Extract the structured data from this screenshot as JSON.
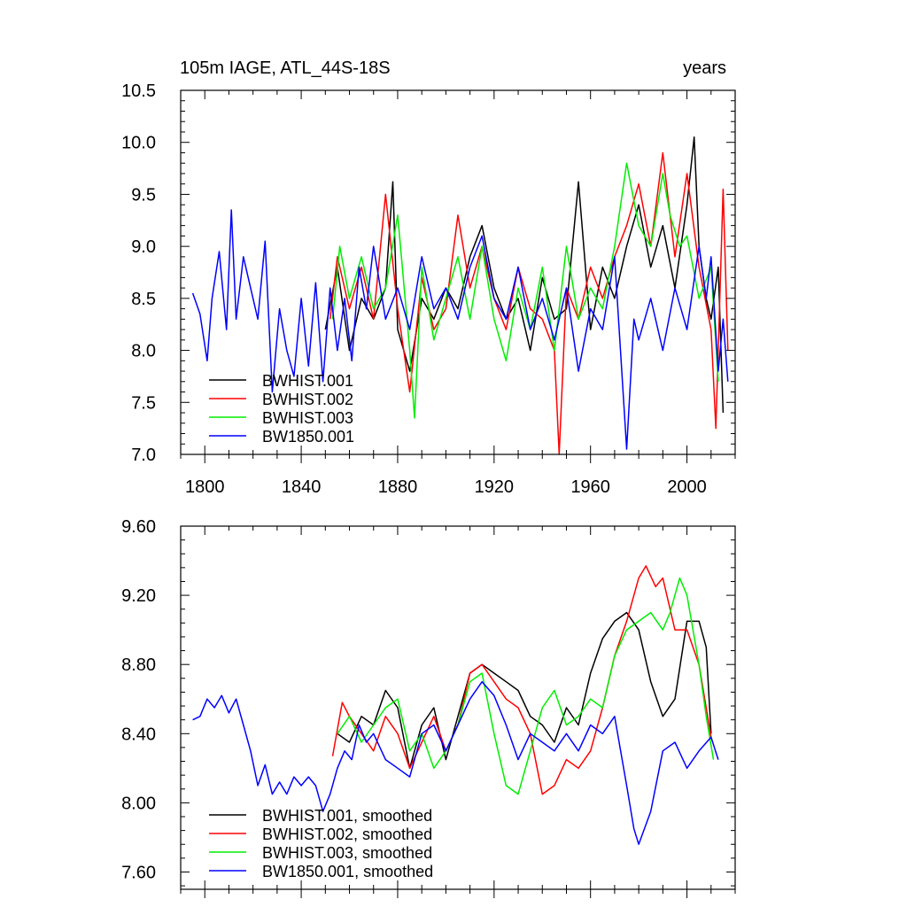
{
  "chart_data": [
    {
      "type": "line",
      "title": "105m IAGE, ATL_44S-18S",
      "units_label": "years",
      "xlim": [
        1790,
        2020
      ],
      "ylim": [
        7.0,
        10.5
      ],
      "x_ticks": [
        1800,
        1840,
        1880,
        1920,
        1960,
        2000
      ],
      "x_tick_labels": [
        "1800",
        "1840",
        "1880",
        "1920",
        "1960",
        "2000"
      ],
      "y_ticks": [
        7.0,
        7.5,
        8.0,
        8.5,
        9.0,
        9.5,
        10.0,
        10.5
      ],
      "y_tick_labels": [
        "7.0",
        "7.5",
        "8.0",
        "8.5",
        "9.0",
        "9.5",
        "10.0",
        "10.5"
      ],
      "legend_position": "bottom-left",
      "series": [
        {
          "name": "BWHIST.001",
          "color": "#000000",
          "x": [
            1850,
            1855,
            1860,
            1865,
            1870,
            1875,
            1878,
            1880,
            1885,
            1890,
            1895,
            1900,
            1905,
            1910,
            1915,
            1920,
            1925,
            1930,
            1935,
            1940,
            1945,
            1950,
            1955,
            1960,
            1965,
            1970,
            1975,
            1980,
            1985,
            1990,
            1995,
            2000,
            2003,
            2005,
            2008,
            2010,
            2013,
            2015
          ],
          "values": [
            8.2,
            8.8,
            8.0,
            8.5,
            8.3,
            8.6,
            9.62,
            8.2,
            7.8,
            8.5,
            8.3,
            8.6,
            8.4,
            8.9,
            9.2,
            8.6,
            8.3,
            8.5,
            8.0,
            8.7,
            8.3,
            8.4,
            9.62,
            8.2,
            8.8,
            8.5,
            9.0,
            9.4,
            8.8,
            9.2,
            8.6,
            9.4,
            10.05,
            9.0,
            8.5,
            8.3,
            8.8,
            7.4
          ]
        },
        {
          "name": "BWHIST.002",
          "color": "#ff0000",
          "x": [
            1852,
            1855,
            1860,
            1865,
            1870,
            1875,
            1880,
            1885,
            1890,
            1895,
            1900,
            1905,
            1910,
            1915,
            1920,
            1925,
            1930,
            1935,
            1940,
            1945,
            1947,
            1950,
            1955,
            1960,
            1965,
            1970,
            1975,
            1980,
            1985,
            1990,
            1995,
            2000,
            2005,
            2010,
            2012,
            2015,
            2017
          ],
          "values": [
            8.3,
            8.9,
            8.4,
            8.8,
            8.3,
            9.5,
            8.4,
            7.6,
            8.7,
            8.2,
            8.4,
            9.3,
            8.6,
            9.0,
            8.5,
            8.2,
            8.8,
            8.4,
            8.3,
            8.0,
            7.0,
            8.6,
            8.3,
            8.8,
            8.5,
            8.9,
            9.2,
            9.6,
            9.0,
            9.9,
            8.9,
            9.7,
            8.8,
            8.2,
            7.25,
            9.55,
            8.0
          ]
        },
        {
          "name": "BWHIST.003",
          "color": "#00ee00",
          "x": [
            1853,
            1856,
            1860,
            1865,
            1870,
            1875,
            1880,
            1885,
            1887,
            1890,
            1895,
            1900,
            1905,
            1910,
            1915,
            1920,
            1925,
            1930,
            1935,
            1940,
            1945,
            1950,
            1955,
            1960,
            1965,
            1970,
            1975,
            1980,
            1985,
            1990,
            1993,
            1997,
            2000,
            2005,
            2010,
            2013
          ],
          "values": [
            8.3,
            9.0,
            8.5,
            8.9,
            8.4,
            8.6,
            9.3,
            8.0,
            7.35,
            8.8,
            8.1,
            8.5,
            8.9,
            8.3,
            9.0,
            8.3,
            7.9,
            8.6,
            8.2,
            8.8,
            8.0,
            9.0,
            8.3,
            8.6,
            8.4,
            9.0,
            9.8,
            9.2,
            9.0,
            9.7,
            9.3,
            9.0,
            9.1,
            8.5,
            8.8,
            7.7
          ]
        },
        {
          "name": "BW1850.001",
          "color": "#0000ff",
          "x": [
            1795,
            1798,
            1801,
            1803,
            1806,
            1809,
            1811,
            1813,
            1816,
            1819,
            1822,
            1825,
            1828,
            1831,
            1834,
            1837,
            1840,
            1843,
            1846,
            1849,
            1852,
            1855,
            1858,
            1861,
            1864,
            1867,
            1870,
            1875,
            1880,
            1885,
            1890,
            1895,
            1900,
            1905,
            1910,
            1915,
            1920,
            1925,
            1930,
            1935,
            1940,
            1945,
            1950,
            1955,
            1960,
            1965,
            1970,
            1975,
            1978,
            1980,
            1985,
            1990,
            1995,
            2000,
            2005,
            2008,
            2010,
            2013,
            2015,
            2017
          ],
          "values": [
            8.55,
            8.35,
            7.9,
            8.5,
            8.95,
            8.2,
            9.35,
            8.3,
            8.9,
            8.6,
            8.3,
            9.05,
            7.6,
            8.4,
            8.0,
            7.75,
            8.5,
            7.85,
            8.65,
            7.7,
            8.6,
            8.0,
            8.5,
            7.9,
            8.8,
            8.4,
            9.0,
            8.3,
            8.6,
            8.2,
            8.9,
            8.4,
            8.6,
            8.3,
            8.8,
            9.1,
            8.5,
            8.3,
            8.8,
            8.2,
            8.5,
            8.1,
            8.6,
            7.8,
            8.4,
            8.2,
            8.9,
            7.05,
            8.3,
            8.1,
            8.5,
            8.0,
            8.6,
            8.2,
            9.0,
            8.5,
            8.9,
            7.8,
            8.3,
            7.7
          ]
        }
      ]
    },
    {
      "type": "line",
      "xlim": [
        1790,
        2020
      ],
      "ylim": [
        7.5,
        9.6
      ],
      "y_ticks": [
        7.6,
        8.0,
        8.4,
        8.8,
        9.2,
        9.6
      ],
      "y_tick_labels": [
        "7.60",
        "8.00",
        "8.40",
        "8.80",
        "9.20",
        "9.60"
      ],
      "legend_position": "bottom-left",
      "series": [
        {
          "name": "BWHIST.001, smoothed",
          "color": "#000000",
          "x": [
            1855,
            1860,
            1865,
            1870,
            1875,
            1880,
            1885,
            1890,
            1895,
            1900,
            1905,
            1910,
            1915,
            1920,
            1925,
            1930,
            1935,
            1940,
            1945,
            1950,
            1955,
            1960,
            1965,
            1970,
            1975,
            1980,
            1985,
            1990,
            1995,
            2000,
            2005,
            2008,
            2010
          ],
          "values": [
            8.4,
            8.35,
            8.5,
            8.45,
            8.65,
            8.55,
            8.2,
            8.45,
            8.55,
            8.25,
            8.5,
            8.75,
            8.8,
            8.75,
            8.7,
            8.65,
            8.5,
            8.45,
            8.35,
            8.55,
            8.45,
            8.75,
            8.95,
            9.05,
            9.1,
            9.0,
            8.7,
            8.5,
            8.6,
            9.05,
            9.05,
            8.9,
            8.4
          ]
        },
        {
          "name": "BWHIST.002, smoothed",
          "color": "#ff0000",
          "x": [
            1853,
            1857,
            1860,
            1865,
            1870,
            1875,
            1880,
            1885,
            1890,
            1895,
            1900,
            1905,
            1910,
            1915,
            1920,
            1925,
            1930,
            1935,
            1940,
            1945,
            1950,
            1955,
            1960,
            1965,
            1970,
            1975,
            1980,
            1983,
            1987,
            1990,
            1995,
            2000,
            2005,
            2010
          ],
          "values": [
            8.27,
            8.58,
            8.5,
            8.4,
            8.3,
            8.5,
            8.4,
            8.2,
            8.35,
            8.5,
            8.3,
            8.45,
            8.75,
            8.8,
            8.7,
            8.6,
            8.55,
            8.4,
            8.05,
            8.1,
            8.25,
            8.2,
            8.3,
            8.55,
            8.85,
            9.05,
            9.3,
            9.37,
            9.25,
            9.3,
            9.0,
            9.0,
            8.8,
            8.38
          ]
        },
        {
          "name": "BWHIST.003, smoothed",
          "color": "#00ee00",
          "x": [
            1855,
            1860,
            1865,
            1870,
            1875,
            1880,
            1885,
            1890,
            1895,
            1900,
            1905,
            1910,
            1915,
            1920,
            1925,
            1930,
            1935,
            1940,
            1945,
            1950,
            1955,
            1960,
            1965,
            1970,
            1975,
            1980,
            1985,
            1990,
            1993,
            1997,
            2000,
            2005,
            2008,
            2011
          ],
          "values": [
            8.4,
            8.5,
            8.35,
            8.45,
            8.55,
            8.6,
            8.3,
            8.4,
            8.2,
            8.3,
            8.45,
            8.7,
            8.75,
            8.4,
            8.1,
            8.05,
            8.3,
            8.55,
            8.65,
            8.45,
            8.5,
            8.6,
            8.55,
            8.85,
            9.0,
            9.05,
            9.1,
            9.0,
            9.1,
            9.3,
            9.2,
            8.8,
            8.5,
            8.25
          ]
        },
        {
          "name": "BW1850.001, smoothed",
          "color": "#0000ff",
          "x": [
            1795,
            1798,
            1801,
            1804,
            1807,
            1810,
            1813,
            1816,
            1819,
            1822,
            1825,
            1828,
            1831,
            1834,
            1837,
            1840,
            1843,
            1846,
            1849,
            1852,
            1855,
            1858,
            1861,
            1864,
            1867,
            1870,
            1875,
            1880,
            1885,
            1890,
            1895,
            1900,
            1905,
            1910,
            1915,
            1920,
            1925,
            1930,
            1935,
            1940,
            1945,
            1950,
            1955,
            1960,
            1965,
            1970,
            1975,
            1978,
            1980,
            1985,
            1990,
            1995,
            2000,
            2005,
            2010,
            2013
          ],
          "values": [
            8.48,
            8.5,
            8.6,
            8.55,
            8.62,
            8.52,
            8.6,
            8.45,
            8.3,
            8.1,
            8.22,
            8.05,
            8.12,
            8.05,
            8.15,
            8.1,
            8.15,
            8.1,
            7.95,
            8.05,
            8.2,
            8.3,
            8.25,
            8.45,
            8.35,
            8.4,
            8.25,
            8.2,
            8.15,
            8.4,
            8.45,
            8.3,
            8.45,
            8.6,
            8.7,
            8.62,
            8.45,
            8.25,
            8.4,
            8.35,
            8.3,
            8.4,
            8.3,
            8.45,
            8.4,
            8.5,
            8.1,
            7.85,
            7.76,
            7.95,
            8.3,
            8.35,
            8.2,
            8.3,
            8.38,
            8.25
          ]
        }
      ]
    }
  ]
}
